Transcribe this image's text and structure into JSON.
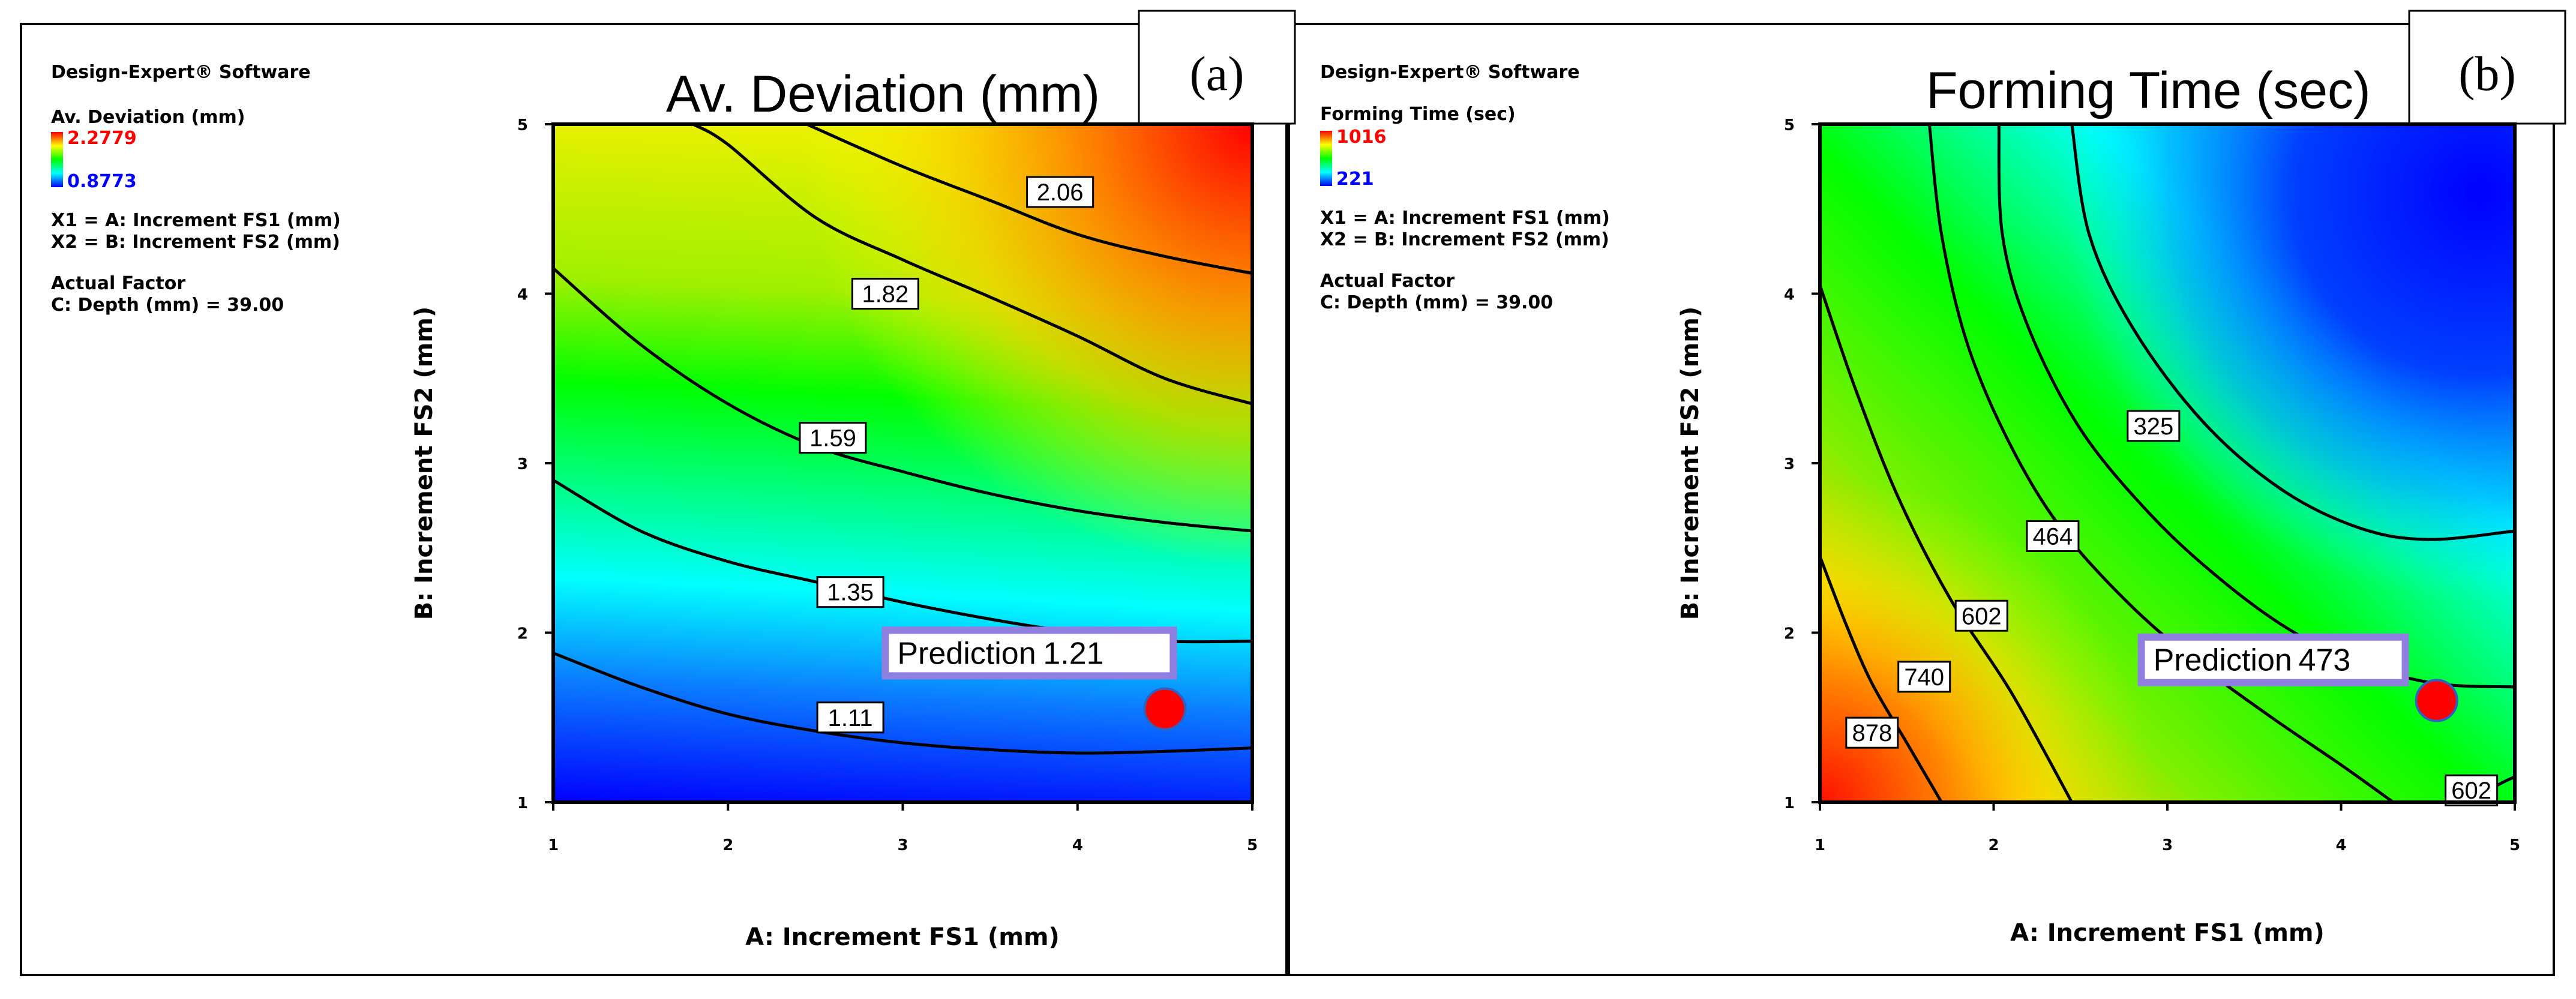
{
  "chart_data": [
    {
      "type": "contour",
      "panel": "(a)",
      "title": "Av. Deviation (mm)",
      "software": "Design-Expert® Software",
      "response": "Av. Deviation (mm)",
      "legend_max": "2.2779",
      "legend_min": "0.8773",
      "x1_def": "X1 = A: Increment FS1 (mm)",
      "x2_def": "X2 = B: Increment FS2 (mm)",
      "actual_factor_heading": "Actual Factor",
      "actual_factor": "C: Depth (mm) = 39.00",
      "xlabel": "A: Increment FS1 (mm)",
      "ylabel": "B: Increment FS2 (mm)",
      "xlim": [
        1,
        5
      ],
      "ylim": [
        1,
        5
      ],
      "x_ticks": [
        "1",
        "2",
        "3",
        "4",
        "5"
      ],
      "y_ticks": [
        "1",
        "2",
        "3",
        "4",
        "5"
      ],
      "contours": [
        {
          "level": "2.06",
          "points": [
            [
              2.45,
              5.0
            ],
            [
              3.0,
              4.75
            ],
            [
              3.5,
              4.55
            ],
            [
              4.0,
              4.35
            ],
            [
              4.5,
              4.22
            ],
            [
              5.0,
              4.12
            ]
          ],
          "label_at": [
            3.9,
            4.6
          ]
        },
        {
          "level": "1.82",
          "points": [
            [
              1.8,
              5.0
            ],
            [
              2.0,
              4.88
            ],
            [
              2.5,
              4.45
            ],
            [
              3.0,
              4.2
            ],
            [
              3.5,
              3.98
            ],
            [
              4.0,
              3.75
            ],
            [
              4.5,
              3.5
            ],
            [
              5.0,
              3.35
            ]
          ],
          "label_at": [
            2.9,
            4.0
          ]
        },
        {
          "level": "1.59",
          "points": [
            [
              1.0,
              4.15
            ],
            [
              1.5,
              3.7
            ],
            [
              2.0,
              3.35
            ],
            [
              2.5,
              3.1
            ],
            [
              3.0,
              2.95
            ],
            [
              3.5,
              2.82
            ],
            [
              4.0,
              2.72
            ],
            [
              4.5,
              2.65
            ],
            [
              5.0,
              2.6
            ]
          ],
          "label_at": [
            2.6,
            3.15
          ]
        },
        {
          "level": "1.35",
          "points": [
            [
              1.0,
              2.9
            ],
            [
              1.5,
              2.6
            ],
            [
              2.0,
              2.42
            ],
            [
              2.5,
              2.3
            ],
            [
              3.0,
              2.18
            ],
            [
              3.5,
              2.08
            ],
            [
              4.0,
              2.0
            ],
            [
              4.5,
              1.95
            ],
            [
              5.0,
              1.95
            ]
          ],
          "label_at": [
            2.7,
            2.24
          ]
        },
        {
          "level": "1.11",
          "points": [
            [
              1.0,
              1.88
            ],
            [
              1.5,
              1.68
            ],
            [
              2.0,
              1.52
            ],
            [
              2.5,
              1.42
            ],
            [
              3.0,
              1.35
            ],
            [
              3.5,
              1.31
            ],
            [
              4.0,
              1.29
            ],
            [
              4.5,
              1.3
            ],
            [
              5.0,
              1.32
            ]
          ],
          "label_at": [
            2.7,
            1.5
          ]
        }
      ],
      "prediction": {
        "label": "Prediction",
        "value": "1.21",
        "x": 4.5,
        "y": 1.55,
        "box_at": [
          2.9,
          1.88
        ]
      },
      "colors": {
        "high": "#ff0000",
        "mid_high": "#ffff00",
        "mid": "#00ff00",
        "mid_low": "#00ffff",
        "low": "#0000ff",
        "point": "#ff0000"
      }
    },
    {
      "type": "contour",
      "panel": "(b)",
      "title": "Forming Time (sec)",
      "software": "Design-Expert® Software",
      "response": "Forming Time (sec)",
      "legend_max": "1016",
      "legend_min": "221",
      "x1_def": "X1 = A: Increment FS1 (mm)",
      "x2_def": "X2 = B: Increment FS2 (mm)",
      "actual_factor_heading": "Actual Factor",
      "actual_factor": "C: Depth (mm) = 39.00",
      "xlabel": "A: Increment FS1 (mm)",
      "ylabel": "B: Increment FS2 (mm)",
      "xlim": [
        1,
        5
      ],
      "ylim": [
        1,
        5
      ],
      "x_ticks": [
        "1",
        "2",
        "3",
        "4",
        "5"
      ],
      "y_ticks": [
        "1",
        "2",
        "3",
        "4",
        "5"
      ],
      "contours": [
        {
          "level": "325",
          "points": [
            [
              2.45,
              5.0
            ],
            [
              2.55,
              4.35
            ],
            [
              2.8,
              3.8
            ],
            [
              3.2,
              3.25
            ],
            [
              3.65,
              2.85
            ],
            [
              4.1,
              2.62
            ],
            [
              4.5,
              2.55
            ],
            [
              5.0,
              2.6
            ]
          ],
          "label_at": [
            2.92,
            3.22
          ]
        },
        {
          "level": "464",
          "points": [
            [
              2.03,
              5.0
            ],
            [
              2.05,
              4.35
            ],
            [
              2.2,
              3.8
            ],
            [
              2.5,
              3.2
            ],
            [
              2.9,
              2.7
            ],
            [
              3.3,
              2.32
            ],
            [
              3.7,
              2.02
            ],
            [
              4.1,
              1.82
            ],
            [
              4.55,
              1.7
            ],
            [
              5.0,
              1.68
            ]
          ],
          "label_at": [
            2.34,
            2.57
          ]
        },
        {
          "level": "602",
          "points": [
            [
              1.63,
              5.0
            ],
            [
              1.7,
              4.35
            ],
            [
              1.85,
              3.7
            ],
            [
              2.1,
              3.1
            ],
            [
              2.4,
              2.6
            ],
            [
              2.8,
              2.15
            ],
            [
              3.2,
              1.8
            ],
            [
              3.6,
              1.5
            ],
            [
              4.0,
              1.22
            ],
            [
              4.3,
              1.0
            ]
          ],
          "label_at": [
            1.93,
            2.1
          ]
        },
        {
          "level": "602",
          "points": [
            [
              4.75,
              1.0
            ],
            [
              4.9,
              1.1
            ],
            [
              5.0,
              1.15
            ]
          ],
          "label_at": [
            4.75,
            1.07
          ]
        },
        {
          "level": "740",
          "points": [
            [
              1.0,
              4.05
            ],
            [
              1.2,
              3.45
            ],
            [
              1.45,
              2.8
            ],
            [
              1.75,
              2.2
            ],
            [
              2.1,
              1.65
            ],
            [
              2.45,
              1.0
            ]
          ],
          "label_at": [
            1.6,
            1.74
          ]
        },
        {
          "level": "878",
          "points": [
            [
              1.0,
              2.45
            ],
            [
              1.15,
              2.05
            ],
            [
              1.3,
              1.7
            ],
            [
              1.5,
              1.35
            ],
            [
              1.7,
              1.0
            ]
          ],
          "label_at": [
            1.3,
            1.41
          ]
        }
      ],
      "prediction": {
        "label": "Prediction",
        "value": "473",
        "x": 4.55,
        "y": 1.6,
        "box_at": [
          2.85,
          1.84
        ]
      },
      "colors": {
        "high": "#ff0000",
        "mid_high": "#ffff00",
        "mid": "#00ff00",
        "mid_low": "#00ffff",
        "low": "#0000ff",
        "point": "#ff0000"
      }
    }
  ]
}
